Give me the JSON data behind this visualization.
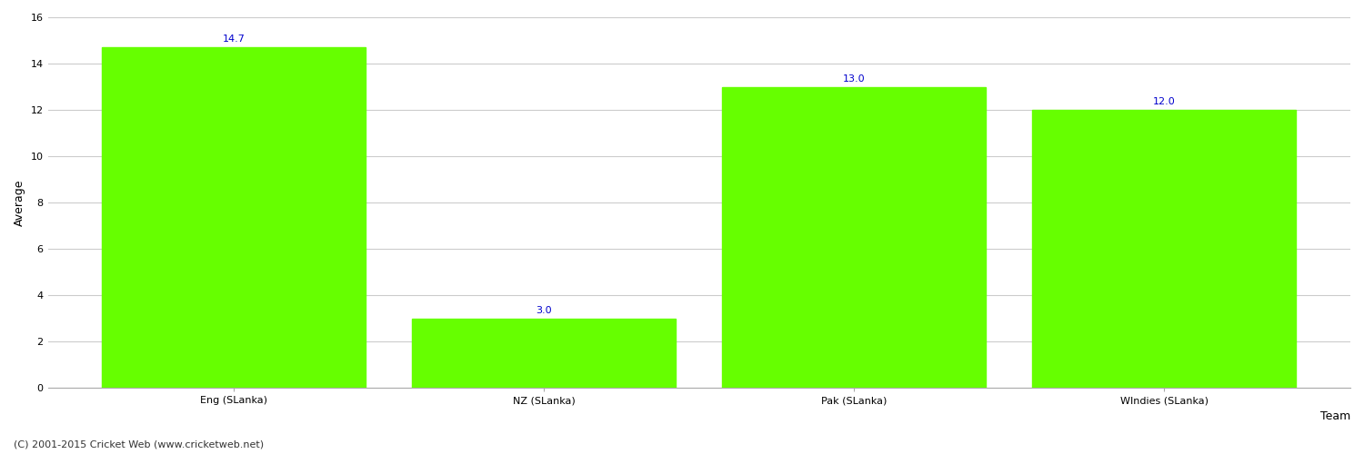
{
  "categories": [
    "Eng (SLanka)",
    "NZ (SLanka)",
    "Pak (SLanka)",
    "WIndies (SLanka)"
  ],
  "values": [
    14.7,
    3.0,
    13.0,
    12.0
  ],
  "bar_color": "#66ff00",
  "bar_edge_color": "#66ff00",
  "value_color": "#0000cc",
  "value_fontsize": 8,
  "xlabel": "Team",
  "ylabel": "Average",
  "xlabel_fontsize": 9,
  "ylabel_fontsize": 9,
  "tick_fontsize": 8,
  "ylim": [
    0,
    16
  ],
  "yticks": [
    0,
    2,
    4,
    6,
    8,
    10,
    12,
    14,
    16
  ],
  "background_color": "#ffffff",
  "grid_color": "#cccccc",
  "footer_text": "(C) 2001-2015 Cricket Web (www.cricketweb.net)",
  "footer_fontsize": 8,
  "footer_color": "#333333"
}
